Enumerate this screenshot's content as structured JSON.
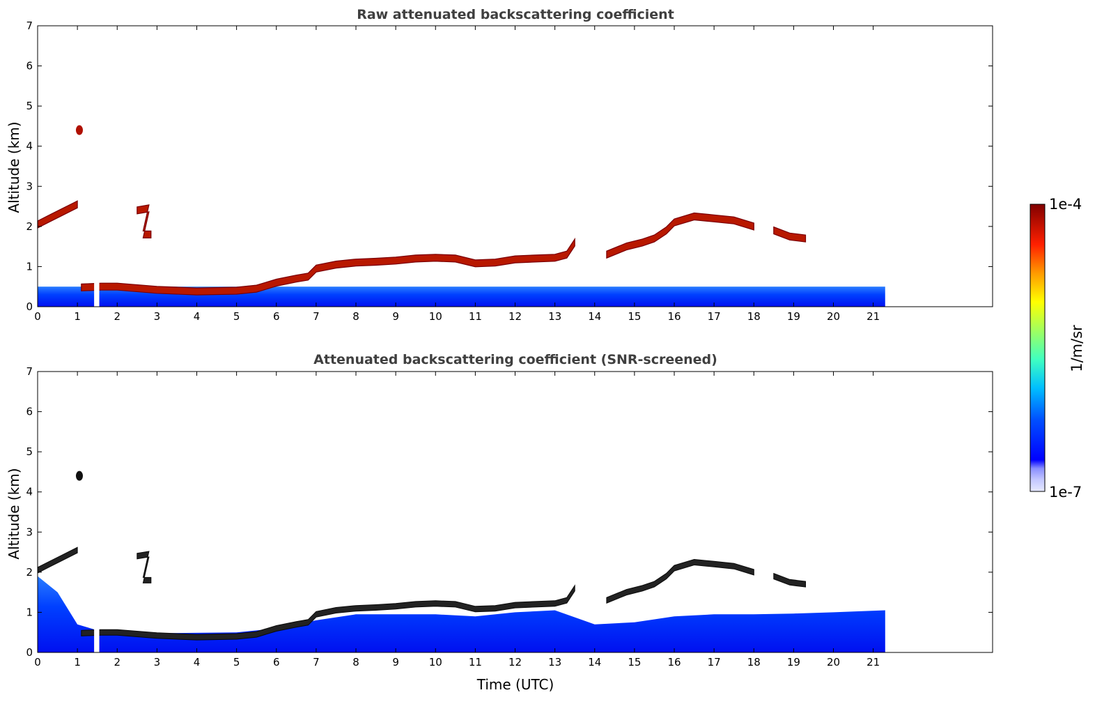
{
  "chart_data": [
    {
      "type": "heatmap",
      "title": "Raw attenuated backscattering coefficient",
      "ylabel": "Altitude (km)",
      "xlabel": "",
      "xlim": [
        0,
        24
      ],
      "ylim": [
        0,
        7
      ],
      "xticks": [
        0,
        1,
        2,
        3,
        4,
        5,
        6,
        7,
        8,
        9,
        10,
        11,
        12,
        13,
        14,
        15,
        16,
        17,
        18,
        19,
        20,
        21
      ],
      "yticks": [
        0,
        1,
        2,
        3,
        4,
        5,
        6,
        7
      ],
      "data_extent_hours": [
        0,
        21.3
      ],
      "data_gaps_hours": [
        [
          1.42,
          1.55
        ]
      ],
      "layers": [
        {
          "kind": "cloud",
          "points": [
            [
              0.0,
              2.05
            ],
            [
              0.3,
              2.2
            ],
            [
              0.6,
              2.35
            ],
            [
              0.9,
              2.5
            ],
            [
              1.0,
              2.55
            ]
          ]
        },
        {
          "kind": "cloud",
          "points": [
            [
              1.05,
              4.4
            ]
          ]
        },
        {
          "kind": "cloud",
          "points": [
            [
              2.5,
              2.4
            ],
            [
              2.8,
              2.45
            ],
            [
              2.65,
              1.8
            ],
            [
              2.85,
              1.8
            ]
          ]
        },
        {
          "kind": "boundary-layer",
          "points": [
            [
              1.1,
              0.48
            ],
            [
              1.6,
              0.5
            ],
            [
              2.0,
              0.5
            ],
            [
              3.0,
              0.42
            ],
            [
              4.0,
              0.38
            ],
            [
              5.0,
              0.4
            ],
            [
              5.5,
              0.45
            ],
            [
              6.0,
              0.6
            ],
            [
              6.5,
              0.7
            ],
            [
              6.8,
              0.75
            ],
            [
              7.0,
              0.95
            ],
            [
              7.5,
              1.05
            ],
            [
              8.0,
              1.1
            ],
            [
              8.5,
              1.12
            ],
            [
              9.0,
              1.15
            ],
            [
              9.5,
              1.2
            ],
            [
              10.0,
              1.22
            ],
            [
              10.5,
              1.2
            ],
            [
              11.0,
              1.08
            ],
            [
              11.5,
              1.1
            ],
            [
              12.0,
              1.18
            ],
            [
              12.5,
              1.2
            ],
            [
              13.0,
              1.22
            ],
            [
              13.3,
              1.3
            ],
            [
              13.5,
              1.6
            ]
          ]
        },
        {
          "kind": "cloud",
          "points": [
            [
              14.3,
              1.3
            ],
            [
              14.8,
              1.5
            ],
            [
              15.2,
              1.6
            ],
            [
              15.5,
              1.7
            ],
            [
              15.8,
              1.9
            ],
            [
              16.0,
              2.1
            ],
            [
              16.5,
              2.25
            ],
            [
              17.0,
              2.2
            ],
            [
              17.5,
              2.15
            ],
            [
              18.0,
              2.0
            ]
          ]
        },
        {
          "kind": "cloud",
          "points": [
            [
              18.5,
              1.9
            ],
            [
              18.9,
              1.75
            ],
            [
              19.3,
              1.7
            ]
          ]
        }
      ],
      "colormap": "jet",
      "colorbar_label": "1/m/sr",
      "colorbar_range": [
        "1e-7",
        "1e-4"
      ]
    },
    {
      "type": "heatmap",
      "title": "Attenuated backscattering coefficient (SNR-screened)",
      "ylabel": "Altitude (km)",
      "xlabel": "Time (UTC)",
      "xlim": [
        0,
        24
      ],
      "ylim": [
        0,
        7
      ],
      "xticks": [
        0,
        1,
        2,
        3,
        4,
        5,
        6,
        7,
        8,
        9,
        10,
        11,
        12,
        13,
        14,
        15,
        16,
        17,
        18,
        19,
        20,
        21
      ],
      "yticks": [
        0,
        1,
        2,
        3,
        4,
        5,
        6,
        7
      ],
      "data_extent_hours": [
        0,
        21.3
      ],
      "valid_signal_top_km": [
        [
          0.0,
          1.9
        ],
        [
          0.5,
          1.5
        ],
        [
          1.0,
          0.7
        ],
        [
          1.5,
          0.55
        ],
        [
          3.0,
          0.48
        ],
        [
          5.0,
          0.5
        ],
        [
          6.0,
          0.6
        ],
        [
          7.0,
          0.8
        ],
        [
          8.0,
          0.95
        ],
        [
          9.0,
          0.95
        ],
        [
          10.0,
          0.95
        ],
        [
          11.0,
          0.9
        ],
        [
          12.0,
          1.0
        ],
        [
          13.0,
          1.05
        ],
        [
          14.0,
          0.7
        ],
        [
          15.0,
          0.75
        ],
        [
          16.0,
          0.9
        ],
        [
          17.0,
          0.95
        ],
        [
          18.0,
          0.95
        ],
        [
          19.0,
          0.97
        ],
        [
          20.0,
          1.0
        ],
        [
          21.3,
          1.05
        ]
      ],
      "colormap": "jet",
      "colorbar_label": "1/m/sr",
      "colorbar_range": [
        "1e-7",
        "1e-4"
      ]
    }
  ],
  "colorbar": {
    "label": "1/m/sr",
    "top_label": "1e-4",
    "bottom_label": "1e-7"
  }
}
